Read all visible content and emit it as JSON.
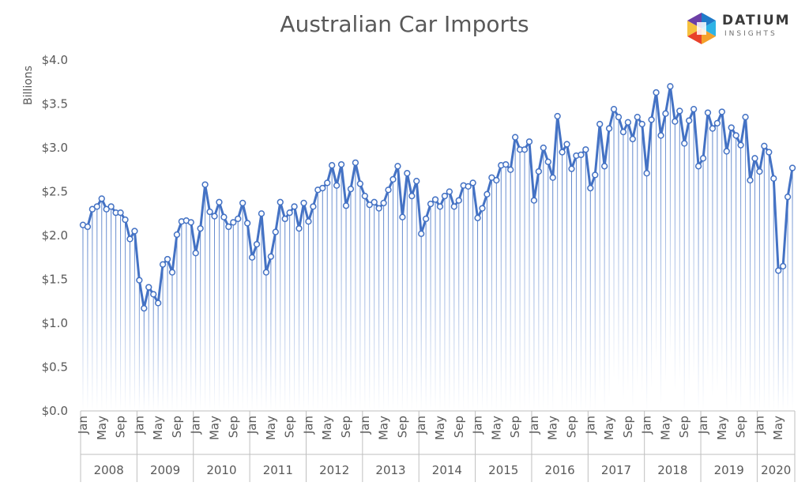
{
  "title": "Australian Car Imports",
  "logo": {
    "word": "DATIUM",
    "sub": "INSIGHTS"
  },
  "colors": {
    "line": "#4472c4",
    "axis": "#bfbfbf",
    "text": "#595959"
  },
  "chart_data": {
    "type": "line",
    "title": "Australian Car Imports",
    "ylabel": "Billions",
    "xlabel": "",
    "ylim": [
      0,
      4.0
    ],
    "y_ticks": [
      "$0.0",
      "$0.5",
      "$1.0",
      "$1.5",
      "$2.0",
      "$2.5",
      "$3.0",
      "$3.5",
      "$4.0"
    ],
    "x_start": "2008-01",
    "month_tick_labels": [
      "Jan",
      "May",
      "Sep"
    ],
    "years": [
      "2008",
      "2009",
      "2010",
      "2011",
      "2012",
      "2013",
      "2014",
      "2015",
      "2016",
      "2017",
      "2018",
      "2019",
      "2020"
    ],
    "grid": false,
    "legend": "none",
    "series": [
      {
        "values": [
          2.12,
          2.1,
          2.3,
          2.33,
          2.42,
          2.3,
          2.33,
          2.26,
          2.26,
          2.18,
          1.96,
          2.05,
          1.49,
          1.17,
          1.41,
          1.33,
          1.23,
          1.67,
          1.73,
          1.58,
          2.01,
          2.16,
          2.17,
          2.15,
          1.8,
          2.08,
          2.58,
          2.27,
          2.22,
          2.38,
          2.21,
          2.1,
          2.15,
          2.19,
          2.37,
          2.14,
          1.75,
          1.9,
          2.25,
          1.58,
          1.76,
          2.04,
          2.38,
          2.19,
          2.26,
          2.33,
          2.08,
          2.37,
          2.16,
          2.33,
          2.52,
          2.54,
          2.6,
          2.8,
          2.57,
          2.81,
          2.34,
          2.53,
          2.83,
          2.59,
          2.45,
          2.35,
          2.38,
          2.31,
          2.37,
          2.52,
          2.64,
          2.79,
          2.21,
          2.71,
          2.45,
          2.62,
          2.02,
          2.19,
          2.36,
          2.41,
          2.33,
          2.45,
          2.5,
          2.33,
          2.4,
          2.57,
          2.56,
          2.6,
          2.2,
          2.31,
          2.47,
          2.66,
          2.63,
          2.8,
          2.81,
          2.75,
          3.12,
          2.98,
          2.98,
          3.07,
          2.4,
          2.73,
          3.0,
          2.84,
          2.66,
          3.36,
          2.95,
          3.04,
          2.76,
          2.91,
          2.92,
          2.98,
          2.54,
          2.69,
          3.27,
          2.79,
          3.22,
          3.44,
          3.35,
          3.18,
          3.29,
          3.1,
          3.35,
          3.27,
          2.71,
          3.32,
          3.63,
          3.14,
          3.39,
          3.7,
          3.3,
          3.42,
          3.05,
          3.31,
          3.44,
          2.79,
          2.88,
          3.4,
          3.22,
          3.28,
          3.41,
          2.96,
          3.23,
          3.14,
          3.03,
          3.35,
          2.63,
          2.88,
          2.73,
          3.02,
          2.95,
          2.65,
          1.6,
          1.65,
          2.44,
          2.77
        ]
      }
    ]
  }
}
